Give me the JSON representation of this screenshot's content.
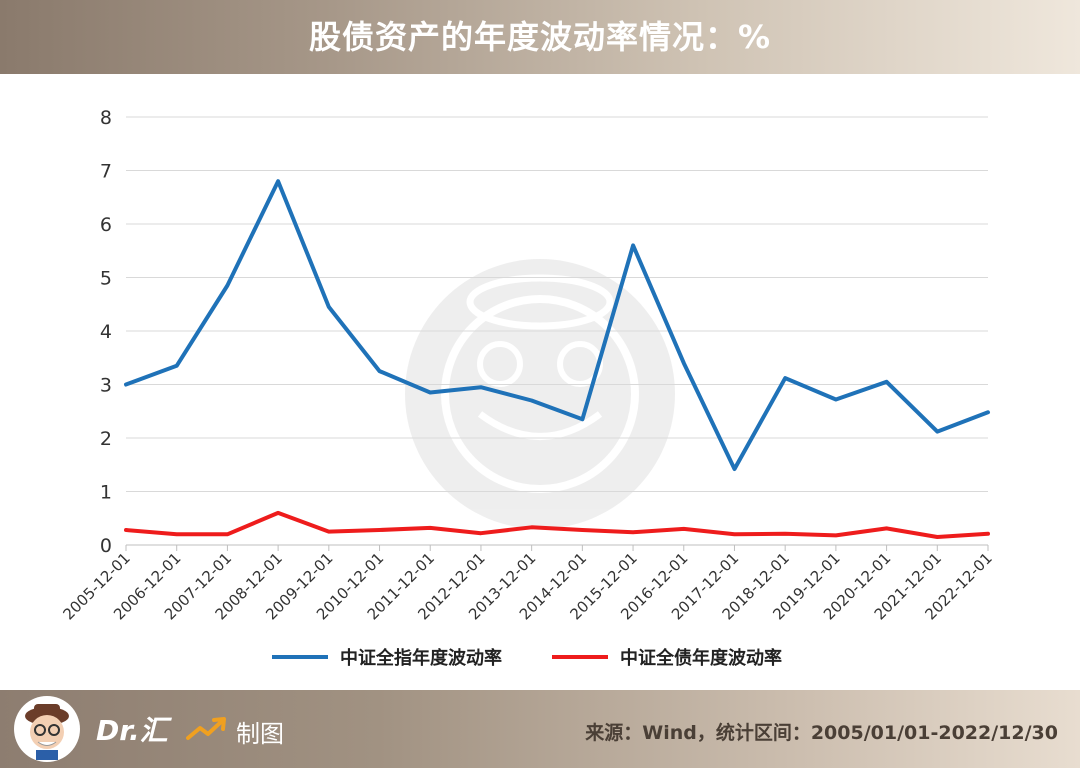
{
  "header": {
    "title": "股债资产的年度波动率情况：%"
  },
  "footer": {
    "brand": "Dr.汇",
    "brand_suffix": "制图",
    "source": "来源：Wind，统计区间：2005/01/01-2022/12/30"
  },
  "colors": {
    "series1": "#1f72b8",
    "series2": "#ee1c1c",
    "grid": "#d9d9d9",
    "axis": "#bfbfbf"
  },
  "chart_data": {
    "type": "line",
    "title": "股债资产的年度波动率情况：%",
    "xlabel": "",
    "ylabel": "",
    "ylim": [
      0,
      8
    ],
    "yticks": [
      "0",
      "1",
      "2",
      "3",
      "4",
      "5",
      "6",
      "7",
      "8"
    ],
    "grid": true,
    "legend": "bottom",
    "x": [
      "2005-12-01",
      "2006-12-01",
      "2007-12-01",
      "2008-12-01",
      "2009-12-01",
      "2010-12-01",
      "2011-12-01",
      "2012-12-01",
      "2013-12-01",
      "2014-12-01",
      "2015-12-01",
      "2016-12-01",
      "2017-12-01",
      "2018-12-01",
      "2019-12-01",
      "2020-12-01",
      "2021-12-01",
      "2022-12-01"
    ],
    "series": [
      {
        "name": "中证全指年度波动率",
        "values": [
          3.0,
          3.35,
          4.85,
          6.8,
          4.45,
          3.25,
          2.85,
          2.95,
          2.7,
          2.35,
          5.6,
          3.4,
          1.42,
          3.12,
          2.72,
          3.05,
          2.12,
          2.48
        ]
      },
      {
        "name": "中证全债年度波动率",
        "values": [
          0.28,
          0.2,
          0.2,
          0.6,
          0.25,
          0.28,
          0.32,
          0.22,
          0.33,
          0.28,
          0.24,
          0.3,
          0.2,
          0.21,
          0.18,
          0.31,
          0.15,
          0.21
        ]
      }
    ]
  }
}
